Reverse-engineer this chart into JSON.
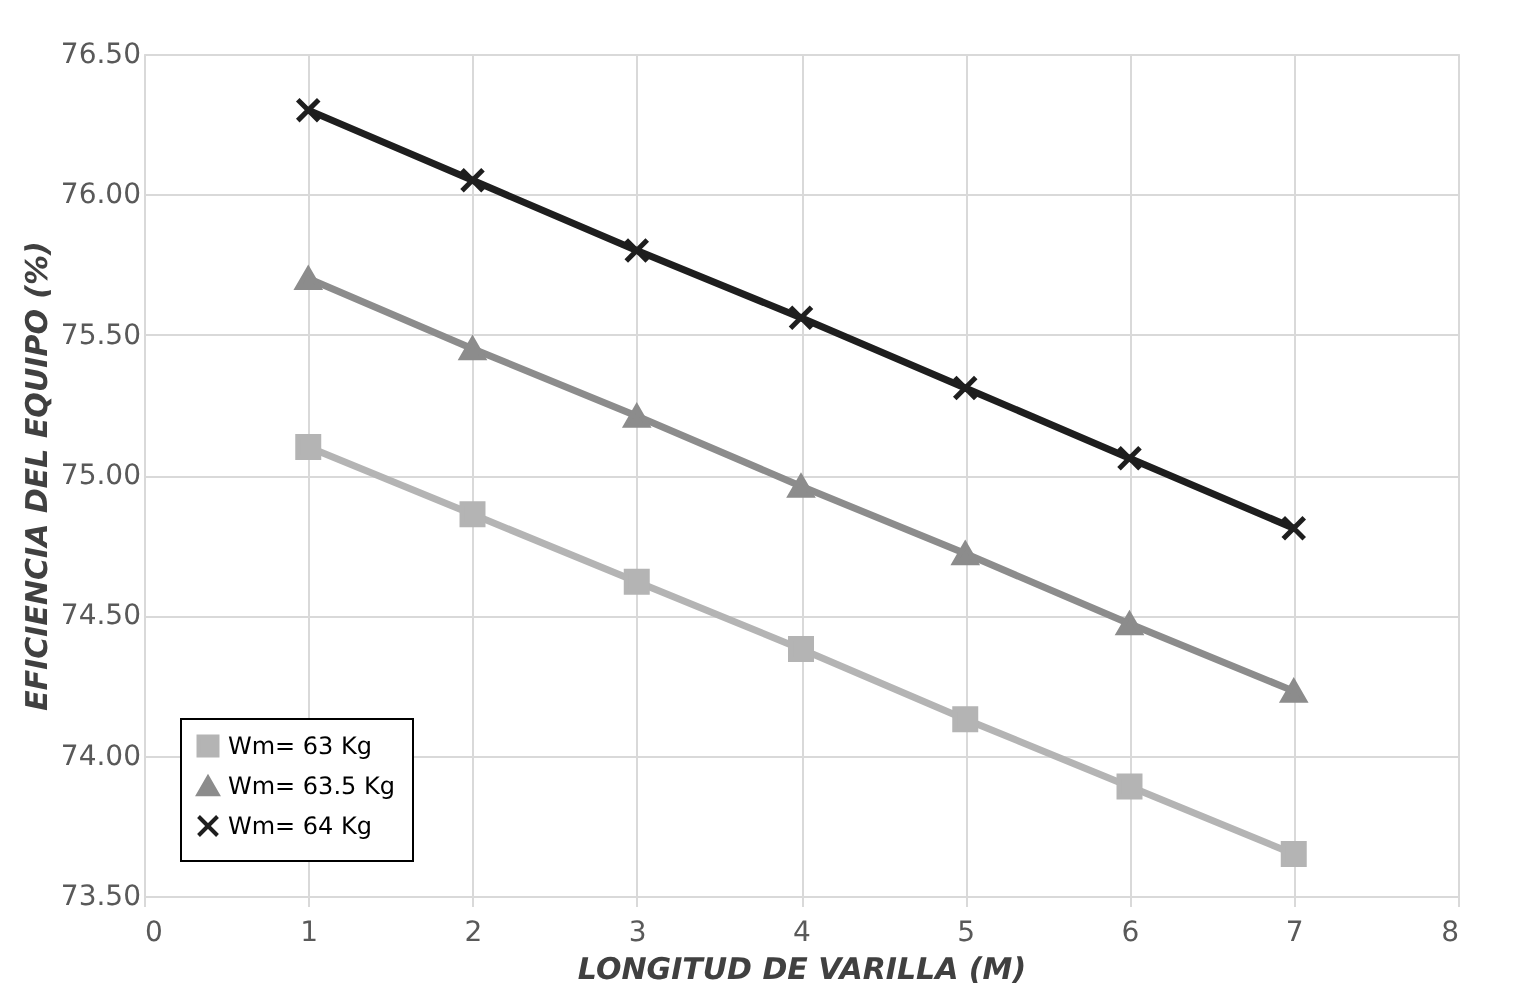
{
  "chart_data": {
    "type": "line",
    "xlabel": "LONGITUD DE VARILLA (M)",
    "ylabel": "EFICIENCIA DEL EQUIPO (%)",
    "x": [
      1,
      2,
      3,
      4,
      5,
      6,
      7
    ],
    "series": [
      {
        "name": "Wm= 63 Kg",
        "color": "#b4b4b4",
        "marker": "square",
        "values": [
          75.1,
          74.86,
          74.62,
          74.38,
          74.13,
          73.89,
          73.65
        ]
      },
      {
        "name": "Wm= 63.5 Kg",
        "color": "#8c8c8c",
        "marker": "triangle",
        "values": [
          75.7,
          75.45,
          75.21,
          74.96,
          74.72,
          74.47,
          74.23
        ]
      },
      {
        "name": "Wm= 64 Kg",
        "color": "#1e1e1e",
        "marker": "cross",
        "values": [
          76.3,
          76.05,
          75.8,
          75.56,
          75.31,
          75.06,
          74.81
        ]
      }
    ],
    "xlim": [
      0,
      8
    ],
    "xticks": [
      0,
      1,
      2,
      3,
      4,
      5,
      6,
      7,
      8
    ],
    "ylim": [
      73.5,
      76.5
    ],
    "yticks": [
      {
        "value": 73.5,
        "label": "73.50"
      },
      {
        "value": 74,
        "label": "74.00"
      },
      {
        "value": 74.5,
        "label": "74.50"
      },
      {
        "value": 75,
        "label": "75.00"
      },
      {
        "value": 75.5,
        "label": "75.50"
      },
      {
        "value": 76,
        "label": "76.00"
      },
      {
        "value": 76.5,
        "label": "76.50"
      }
    ],
    "grid": true,
    "legend": "bottom left",
    "line_style": "solid"
  }
}
